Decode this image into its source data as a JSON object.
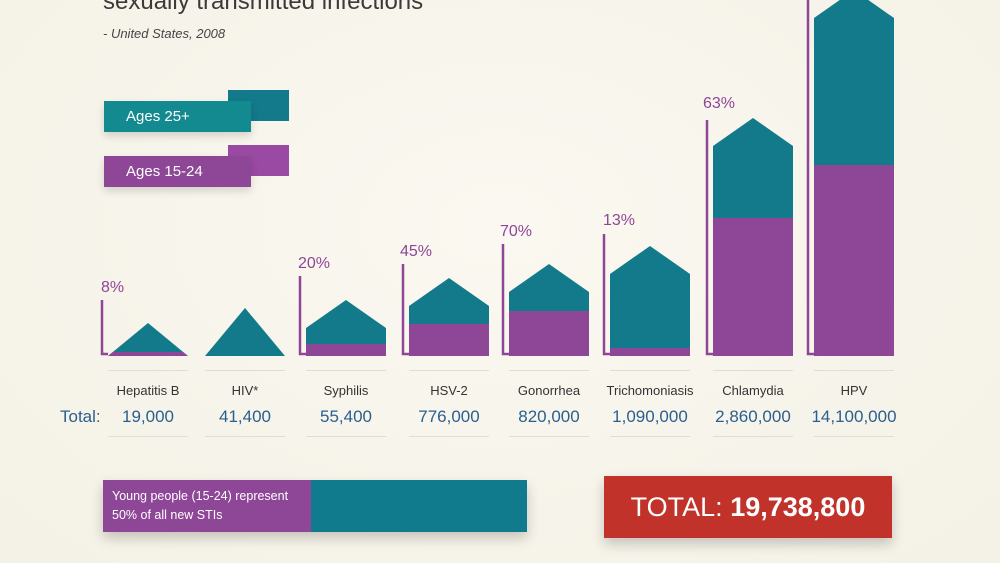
{
  "header": {
    "title": "sexually transmitted infections",
    "subtitle": "- United States, 2008"
  },
  "legend": {
    "older": "Ages 25+",
    "younger": "Ages 15-24"
  },
  "colors": {
    "older": "#127a8b",
    "younger": "#8e4697",
    "total_box": "#c0322a",
    "numbers": "#2a5f8f"
  },
  "chart_data": {
    "type": "bar",
    "stacked": true,
    "categories": [
      "Hepatitis B",
      "HIV*",
      "Syphilis",
      "HSV-2",
      "Gonorrhea",
      "Trichomoniasis",
      "Chlamydia",
      "HPV"
    ],
    "totals_label": "Total:",
    "totals": [
      "19,000",
      "41,400",
      "55,400",
      "776,000",
      "820,000",
      "1,090,000",
      "2,860,000",
      "14,100,000"
    ],
    "percent_ages_15_24_labels": [
      "8%",
      "",
      "20%",
      "45%",
      "70%",
      "13%",
      "63%",
      ""
    ],
    "series": [
      {
        "name": "Ages 15-24"
      },
      {
        "name": "Ages 25+"
      }
    ]
  },
  "footer": {
    "young_text": "Young people (15-24) represent 50% of all new STIs",
    "young_share_percent": 50,
    "total_label": "TOTAL:",
    "total_value": "19,738,800"
  }
}
